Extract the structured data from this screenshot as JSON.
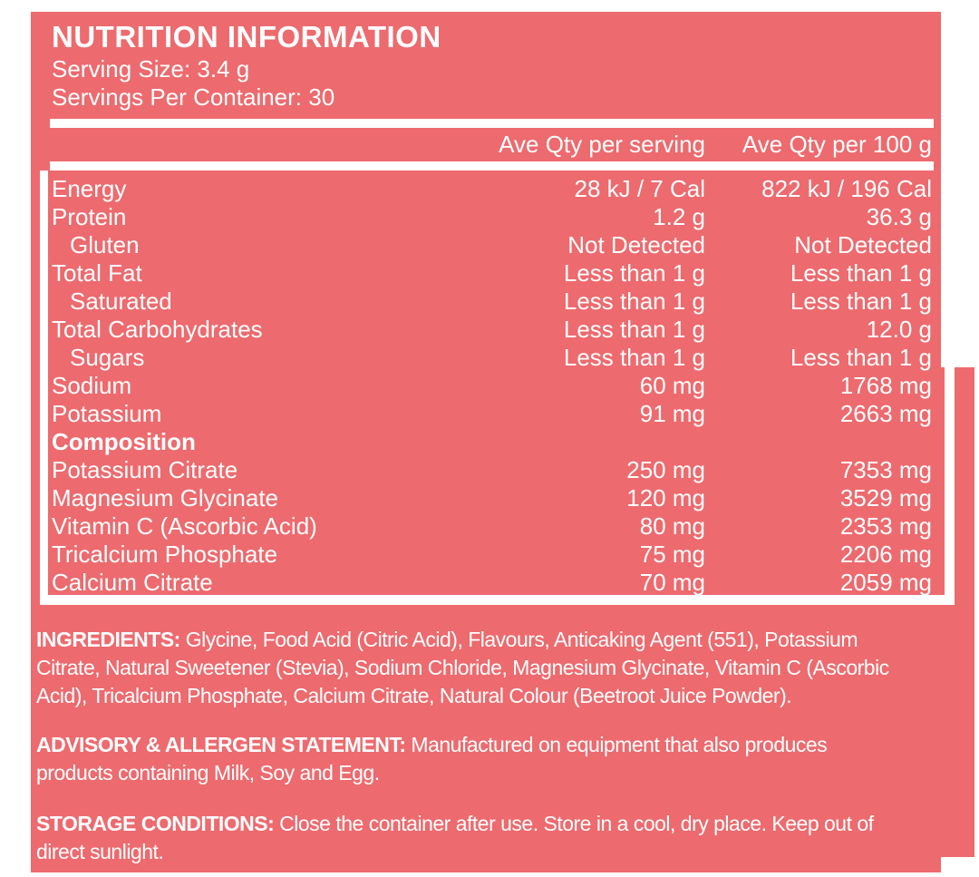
{
  "colors": {
    "label_bg": "#ED6A6E",
    "text": "#FFFFFF"
  },
  "header": {
    "title": "NUTRITION INFORMATION",
    "serving_size": "Serving Size: 3.4 g",
    "servings_per_container": "Servings Per Container: 30"
  },
  "table": {
    "col_headers": [
      "Ave Qty per serving",
      "Ave Qty per 100 g"
    ],
    "nutrients": [
      {
        "name": "Energy",
        "per_serving": "28 kJ / 7 Cal",
        "per_100g": "822 kJ / 196 Cal"
      },
      {
        "name": "Protein",
        "per_serving": "1.2 g",
        "per_100g": "36.3 g"
      },
      {
        "name": "Gluten",
        "per_serving": "Not Detected",
        "per_100g": "Not Detected"
      },
      {
        "name": "Total Fat",
        "per_serving": "Less than 1 g",
        "per_100g": "Less than 1 g"
      },
      {
        "name": "Saturated",
        "per_serving": "Less than 1 g",
        "per_100g": "Less than 1 g"
      },
      {
        "name": "Total Carbohydrates",
        "per_serving": "Less than 1 g",
        "per_100g": "12.0 g"
      },
      {
        "name": "Sugars",
        "per_serving": "Less than 1 g",
        "per_100g": "Less than 1 g"
      },
      {
        "name": "Sodium",
        "per_serving": "60 mg",
        "per_100g": "1768 mg"
      },
      {
        "name": "Potassium",
        "per_serving": "91 mg",
        "per_100g": "2663 mg"
      }
    ],
    "composition_heading": "Composition",
    "composition": [
      {
        "name": "Potassium Citrate",
        "per_serving": "250 mg",
        "per_100g": "7353 mg"
      },
      {
        "name": "Magnesium Glycinate",
        "per_serving": "120 mg",
        "per_100g": "3529 mg"
      },
      {
        "name": "Vitamin C (Ascorbic Acid)",
        "per_serving": "80 mg",
        "per_100g": "2353 mg"
      },
      {
        "name": "Tricalcium Phosphate",
        "per_serving": "75 mg",
        "per_100g": "2206 mg"
      },
      {
        "name": "Calcium Citrate",
        "per_serving": "70 mg",
        "per_100g": "2059 mg"
      }
    ]
  },
  "footnotes": {
    "ingredients_label": "INGREDIENTS:",
    "ingredients_text": " Glycine, Food Acid (Citric Acid), Flavours, Anticaking Agent (551), Potassium Citrate, Natural Sweetener (Stevia), Sodium Chloride, Magnesium Glycinate, Vitamin C (Ascorbic Acid), Tricalcium Phosphate, Calcium Citrate, Natural Colour (Beetroot Juice Powder).",
    "advisory_label": "ADVISORY & ALLERGEN STATEMENT:",
    "advisory_text": " Manufactured on equipment that also produces products containing Milk, Soy and Egg.",
    "storage_label": "STORAGE CONDITIONS:",
    "storage_text": " Close the container after use. Store in a cool, dry place. Keep out of direct sunlight."
  }
}
